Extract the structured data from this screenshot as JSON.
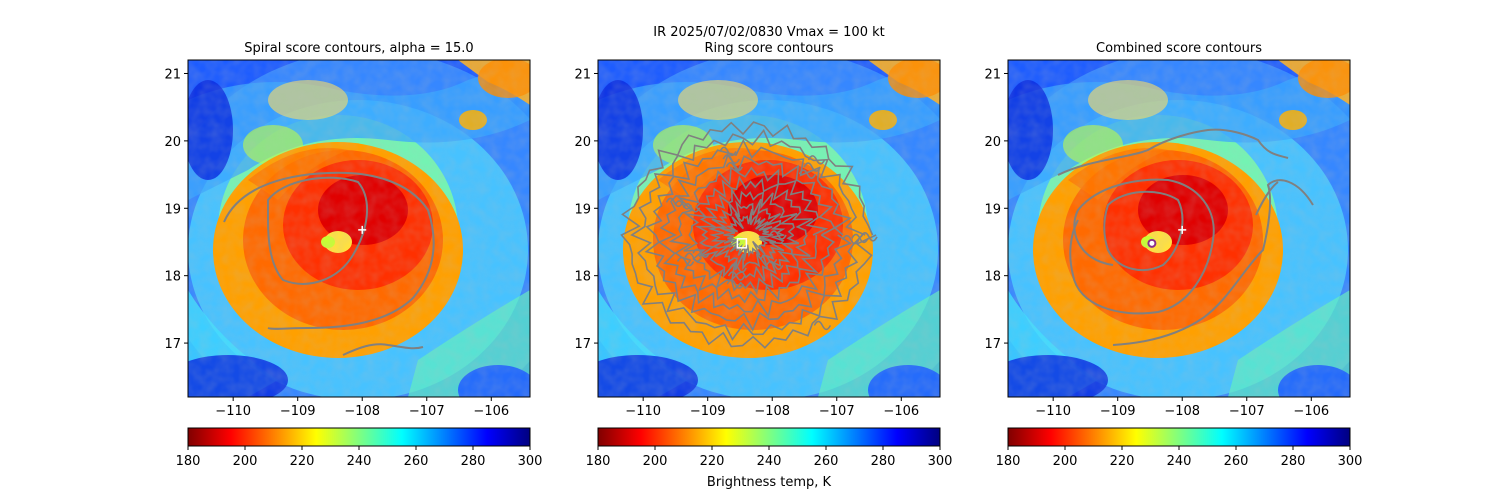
{
  "figure": {
    "suptitle_line1": "IR  2025/07/02/0830    Vmax = 100 kt"
  },
  "chart_data": [
    {
      "type": "heatmap",
      "title": "Spiral score contours, alpha = 15.0",
      "xlim": [
        -110.7,
        -105.4
      ],
      "ylim": [
        16.2,
        21.2
      ],
      "xticks": [
        -110,
        -109,
        -108,
        -107,
        -106
      ],
      "yticks": [
        17,
        18,
        19,
        20,
        21
      ],
      "marker": {
        "symbol": "plus",
        "lon": -108.0,
        "lat": 18.68,
        "color": "#ffffff"
      },
      "colorbar": {
        "range": [
          180,
          300
        ],
        "ticks": [
          180,
          200,
          220,
          240,
          260,
          280,
          300
        ],
        "label": ""
      }
    },
    {
      "type": "heatmap",
      "title": "Ring score contours",
      "xlim": [
        -110.7,
        -105.4
      ],
      "ylim": [
        16.2,
        21.2
      ],
      "xticks": [
        -110,
        -109,
        -108,
        -107,
        -106
      ],
      "yticks": [
        17,
        18,
        19,
        20,
        21
      ],
      "marker": {
        "symbol": "square",
        "lon": -108.47,
        "lat": 18.48,
        "color": "#ffffff"
      },
      "colorbar": {
        "range": [
          180,
          300
        ],
        "ticks": [
          180,
          200,
          220,
          240,
          260,
          280,
          300
        ],
        "label": "Brightness temp, K"
      }
    },
    {
      "type": "heatmap",
      "title": "Combined score contours",
      "xlim": [
        -110.7,
        -105.4
      ],
      "ylim": [
        16.2,
        21.2
      ],
      "xticks": [
        -110,
        -109,
        -108,
        -107,
        -106
      ],
      "yticks": [
        17,
        18,
        19,
        20,
        21
      ],
      "marker": {
        "symbol": "plus",
        "lon": -108.0,
        "lat": 18.68,
        "color": "#ffffff"
      },
      "marker2": {
        "symbol": "circle",
        "lon": -108.47,
        "lat": 18.48,
        "color": "#8b2e8b"
      },
      "colorbar": {
        "range": [
          180,
          300
        ],
        "ticks": [
          180,
          200,
          220,
          240,
          260,
          280,
          300
        ],
        "label": ""
      }
    }
  ]
}
